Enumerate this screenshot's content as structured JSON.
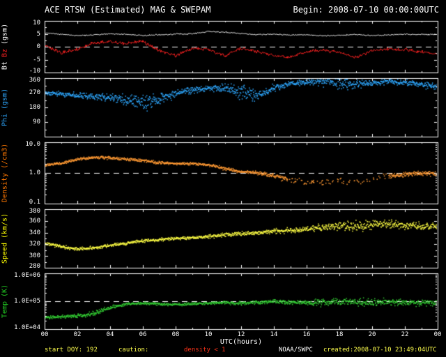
{
  "header": {
    "title": "ACE RTSW (Estimated) MAG & SWEPAM",
    "begin": "Begin: 2008-07-10 00:00:00UTC"
  },
  "footer": {
    "start_doy": "start DOY: 192",
    "caution_label": "caution:",
    "caution_value": "density < 1",
    "credit": "NOAA/SWPC",
    "created": "created:2008-07-10 23:49:04UTC"
  },
  "colors": {
    "background": "#000000",
    "axis": "#ffffff",
    "text": "#ffffff",
    "yellow": "#ffff4d",
    "caution_red": "#ff3319",
    "bt": "#ffffff",
    "bz": "#ff2222",
    "phi": "#2ea8ff",
    "density": "#ff7700",
    "speed": "#ffff00",
    "temp": "#22cc22"
  },
  "x_axis": {
    "label": "UTC(hours)",
    "range": [
      0,
      24
    ],
    "tick_hours": [
      0,
      2,
      4,
      6,
      8,
      10,
      12,
      14,
      16,
      18,
      20,
      22,
      24
    ],
    "tick_labels": [
      "00",
      "02",
      "04",
      "06",
      "08",
      "10",
      "12",
      "14",
      "16",
      "18",
      "20",
      "22",
      "00"
    ]
  },
  "chart_data": [
    {
      "type": "line",
      "name": "bt_bz",
      "ylabel": "Bt Bz (gsm)",
      "ylabel_parts": [
        {
          "text": "Bt ",
          "color": "#ffffff"
        },
        {
          "text": "Bz ",
          "color": "#ff2222"
        },
        {
          "text": "(gsm)",
          "color": "#ffffff"
        }
      ],
      "scale": "linear",
      "ylim": [
        -10,
        10
      ],
      "yticks": [
        {
          "v": 10,
          "label": "10"
        },
        {
          "v": 5,
          "label": "5"
        },
        {
          "v": 0,
          "label": "0"
        },
        {
          "v": -5,
          "label": "-5"
        },
        {
          "v": -10,
          "label": "-10"
        }
      ],
      "refline": 0,
      "x_unit": "UTC hours, anchors at every hour 0-24",
      "series": [
        {
          "name": "Bt",
          "color": "#ffffff",
          "style": "line",
          "hourly": [
            5.4,
            4.8,
            4.3,
            4.6,
            5.0,
            4.8,
            4.3,
            4.6,
            4.9,
            5.0,
            5.9,
            5.6,
            5.1,
            4.7,
            4.8,
            4.5,
            4.6,
            4.2,
            4.4,
            4.7,
            4.3,
            4.6,
            4.9,
            4.7,
            4.9
          ],
          "noise": 0.35
        },
        {
          "name": "Bz",
          "color": "#ff2222",
          "style": "line",
          "hourly": [
            0.8,
            -2.5,
            -1.0,
            1.5,
            2.0,
            1.2,
            2.0,
            -1.5,
            -3.5,
            -0.5,
            -1.0,
            -3.5,
            -0.5,
            -2.0,
            -3.5,
            -4.0,
            -2.0,
            -1.2,
            -2.2,
            -4.2,
            -1.5,
            -0.8,
            -1.2,
            -2.0,
            -2.8
          ],
          "noise": 0.9
        }
      ]
    },
    {
      "type": "scatter",
      "name": "phi",
      "ylabel": "Phi (gsm)",
      "ylabel_parts": [
        {
          "text": "Phi (gsm)",
          "color": "#2ea8ff"
        }
      ],
      "scale": "linear",
      "ylim": [
        0,
        360
      ],
      "yticks": [
        {
          "v": 360,
          "label": "360"
        },
        {
          "v": 270,
          "label": "270"
        },
        {
          "v": 180,
          "label": "180"
        },
        {
          "v": 90,
          "label": "90"
        }
      ],
      "refline": null,
      "x_unit": "UTC hours, anchors at every hour 0-24",
      "series": [
        {
          "name": "Phi",
          "color": "#2ea8ff",
          "style": "dots",
          "hourly": [
            270,
            262,
            255,
            250,
            240,
            225,
            205,
            230,
            265,
            285,
            295,
            300,
            275,
            255,
            300,
            325,
            335,
            340,
            330,
            320,
            332,
            340,
            332,
            322,
            308
          ],
          "noise": [
            18,
            20,
            25,
            28,
            35,
            55,
            75,
            55,
            35,
            28,
            25,
            35,
            65,
            55,
            30,
            22,
            28,
            45,
            55,
            38,
            28,
            22,
            22,
            28,
            30
          ]
        }
      ]
    },
    {
      "type": "scatter",
      "name": "density",
      "ylabel": "Density (/cm3)",
      "ylabel_parts": [
        {
          "text": "Density (/cm3)",
          "color": "#ff7700"
        }
      ],
      "scale": "log",
      "ylim": [
        0.1,
        10
      ],
      "yticks": [
        {
          "v": 10,
          "label": "10.0"
        },
        {
          "v": 1,
          "label": "1.0"
        },
        {
          "v": 0.1,
          "label": "0.1"
        }
      ],
      "refline": 1,
      "x_unit": "UTC hours, anchors at every hour 0-24",
      "series": [
        {
          "name": "Density",
          "color": "#ff9933",
          "style": "dots",
          "hourly": [
            1.8,
            2.0,
            2.8,
            3.2,
            3.1,
            2.8,
            2.5,
            2.2,
            2.0,
            2.0,
            1.8,
            1.4,
            1.1,
            1.0,
            0.8,
            0.6,
            0.5,
            0.5,
            0.55,
            0.5,
            0.6,
            0.8,
            0.9,
            1.0,
            0.9
          ],
          "noise": [
            0.06,
            0.06,
            0.07,
            0.07,
            0.07,
            0.07,
            0.07,
            0.07,
            0.06,
            0.06,
            0.07,
            0.08,
            0.08,
            0.09,
            0.1,
            0.14,
            0.16,
            0.16,
            0.16,
            0.16,
            0.15,
            0.12,
            0.1,
            0.1,
            0.1
          ],
          "dropouts": [
            [
              14.8,
              16.5,
              0.35
            ],
            [
              16.5,
              21.0,
              0.22
            ]
          ]
        }
      ]
    },
    {
      "type": "scatter",
      "name": "speed",
      "ylabel": "Speed (km/s)",
      "ylabel_parts": [
        {
          "text": "Speed (km/s)",
          "color": "#ffff00"
        }
      ],
      "scale": "linear",
      "ylim": [
        280,
        380
      ],
      "yticks": [
        {
          "v": 380,
          "label": "380"
        },
        {
          "v": 360,
          "label": "360"
        },
        {
          "v": 340,
          "label": "340"
        },
        {
          "v": 320,
          "label": "320"
        },
        {
          "v": 300,
          "label": "300"
        },
        {
          "v": 280,
          "label": "280"
        }
      ],
      "refline": null,
      "x_unit": "UTC hours, anchors at every hour 0-24",
      "series": [
        {
          "name": "Speed",
          "color": "#ffff44",
          "style": "dots",
          "hourly": [
            321,
            316,
            312,
            314,
            318,
            322,
            326,
            328,
            330,
            331,
            333,
            336,
            338,
            340,
            342,
            344,
            346,
            350,
            352,
            350,
            353,
            355,
            352,
            350,
            351
          ],
          "noise": [
            4,
            4,
            4,
            4,
            4,
            4,
            4,
            4,
            4,
            4,
            4,
            5,
            5,
            5,
            6,
            6,
            7,
            9,
            11,
            12,
            12,
            11,
            9,
            9,
            8
          ]
        }
      ]
    },
    {
      "type": "scatter",
      "name": "temp",
      "ylabel": "Temp (K)",
      "ylabel_parts": [
        {
          "text": "Temp (K)",
          "color": "#22cc22"
        }
      ],
      "scale": "log",
      "ylim": [
        10000,
        1000000
      ],
      "yticks": [
        {
          "v": 1000000,
          "label": "1.0E+06"
        },
        {
          "v": 100000,
          "label": "1.0E+05"
        },
        {
          "v": 10000,
          "label": "1.0E+04"
        }
      ],
      "refline": 100000,
      "x_unit": "UTC hours, anchors at every hour 0-24",
      "series": [
        {
          "name": "Temp",
          "color": "#33cc33",
          "style": "dots",
          "hourly": [
            26000,
            28000,
            30000,
            36000,
            60000,
            80000,
            85000,
            80000,
            76000,
            80000,
            85000,
            90000,
            86000,
            90000,
            100000,
            90000,
            86000,
            90000,
            100000,
            92000,
            86000,
            96000,
            90000,
            86000,
            90000
          ],
          "noise": [
            0.07,
            0.07,
            0.09,
            0.14,
            0.1,
            0.07,
            0.07,
            0.07,
            0.07,
            0.07,
            0.07,
            0.07,
            0.09,
            0.09,
            0.09,
            0.11,
            0.14,
            0.18,
            0.18,
            0.2,
            0.18,
            0.16,
            0.16,
            0.14,
            0.14
          ]
        }
      ]
    }
  ]
}
